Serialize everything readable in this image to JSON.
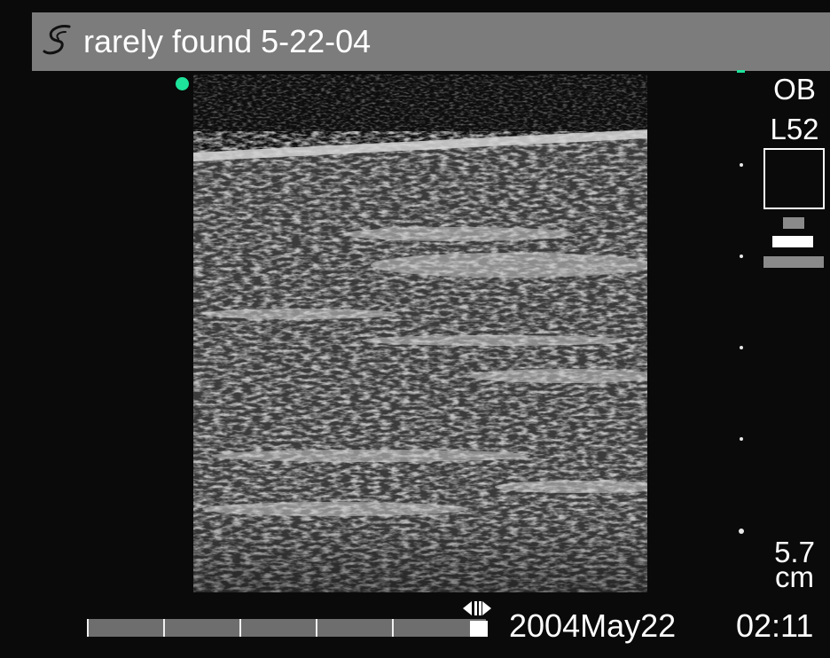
{
  "header": {
    "title": "rarely found 5-22-04",
    "logo_icon": "manufacturer-logo-icon"
  },
  "indicators": {
    "orientation_marker_color": "#1ee39a",
    "depth_tick_color": "#e8e8e8"
  },
  "side_panel": {
    "preset": "OB",
    "probe": "L52",
    "depth_value": "5.7",
    "depth_unit": "cm"
  },
  "footer": {
    "date": "2004May22",
    "time": "02:11",
    "cine_icon": "cine-scroll-arrows-icon"
  },
  "colors": {
    "background": "#0a0a0a",
    "title_bar": "#7c7c7c",
    "accent": "#1ee39a",
    "text": "#ffffff"
  }
}
